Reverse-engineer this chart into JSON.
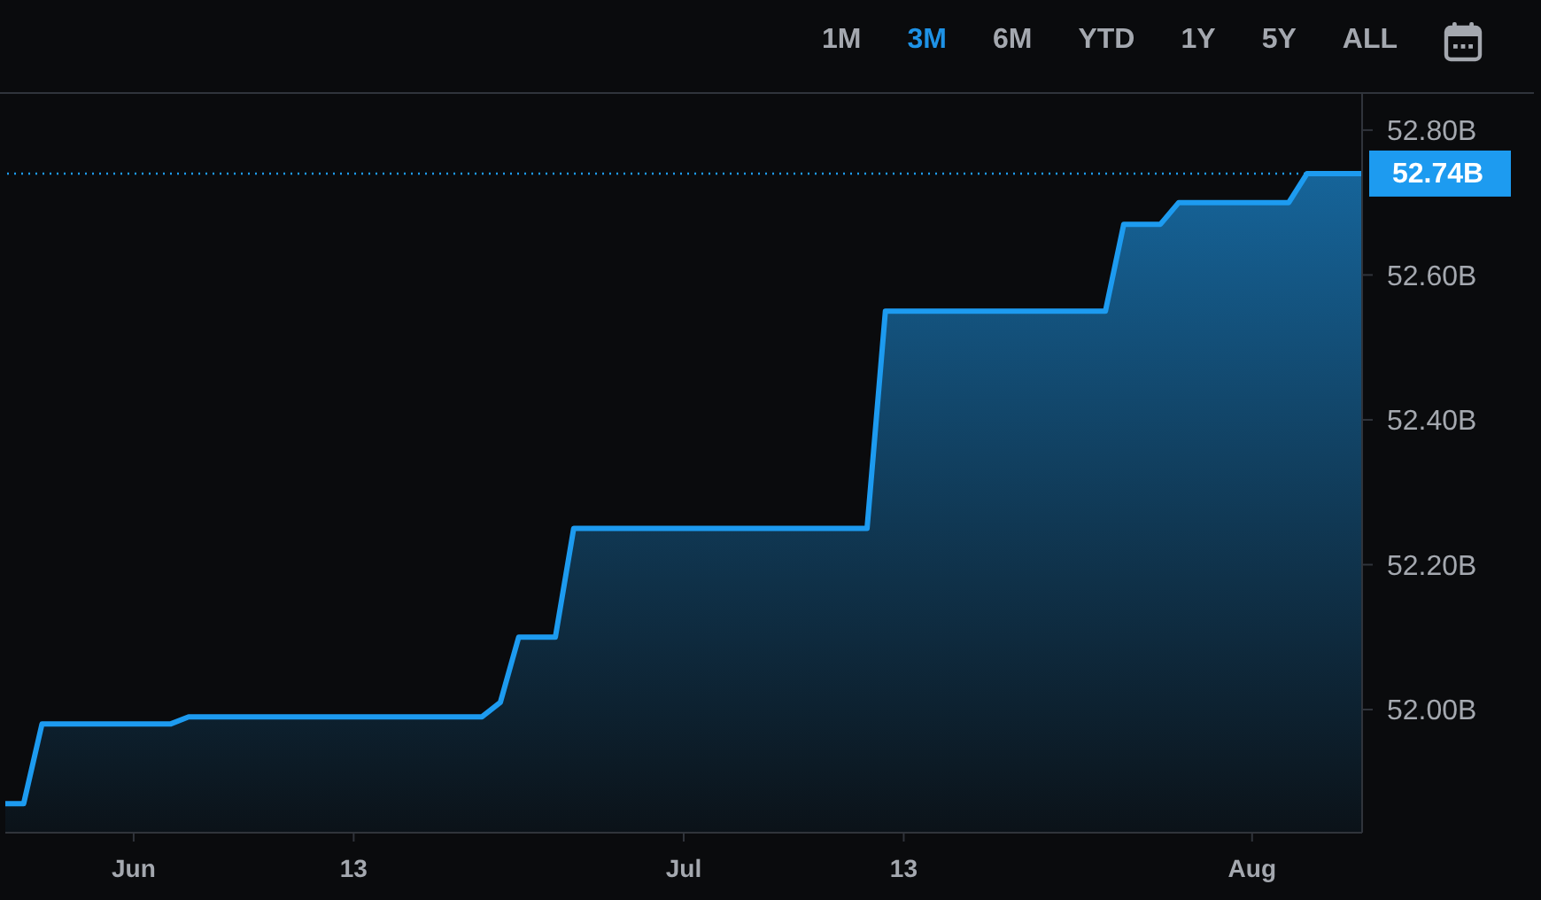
{
  "chart_data": {
    "type": "area",
    "x": [
      "--05-25",
      "--05-26",
      "--05-27",
      "--06-03",
      "--06-04",
      "--06-20",
      "--06-21",
      "--06-22",
      "--06-24",
      "--06-25",
      "--07-11",
      "--07-12",
      "--07-24",
      "--07-25",
      "--07-27",
      "--07-28",
      "--08-03",
      "--08-04",
      "--08-07"
    ],
    "series": [
      {
        "color": "#1d9bf0",
        "values": [
          51.87,
          51.87,
          51.98,
          51.98,
          51.99,
          51.99,
          52.01,
          52.1,
          52.1,
          52.25,
          52.25,
          52.55,
          52.55,
          52.67,
          52.67,
          52.7,
          52.7,
          52.74,
          52.74
        ]
      }
    ],
    "xlim": [
      "--05-25",
      "--08-07"
    ],
    "xticks": [
      {
        "value": "--06-01",
        "label": "Jun"
      },
      {
        "value": "--06-13",
        "label": "13"
      },
      {
        "value": "--07-01",
        "label": "Jul"
      },
      {
        "value": "--07-13",
        "label": "13"
      },
      {
        "value": "--08-01",
        "label": "Aug"
      }
    ],
    "ylim": [
      51.83,
      52.85
    ],
    "yticks": [
      {
        "value": 52.0,
        "label": "52.00B"
      },
      {
        "value": 52.2,
        "label": "52.20B"
      },
      {
        "value": 52.4,
        "label": "52.40B"
      },
      {
        "value": 52.6,
        "label": "52.60B"
      },
      {
        "value": 52.8,
        "label": "52.80B"
      }
    ],
    "ref_lines": [
      {
        "axis": "y",
        "value": 52.74,
        "label": "52.74B",
        "color": "#1d9bf0",
        "line_style": "dotted"
      }
    ],
    "annotations": [
      "1M",
      "3M",
      "6M",
      "YTD",
      "1Y",
      "5Y",
      "ALL"
    ]
  }
}
